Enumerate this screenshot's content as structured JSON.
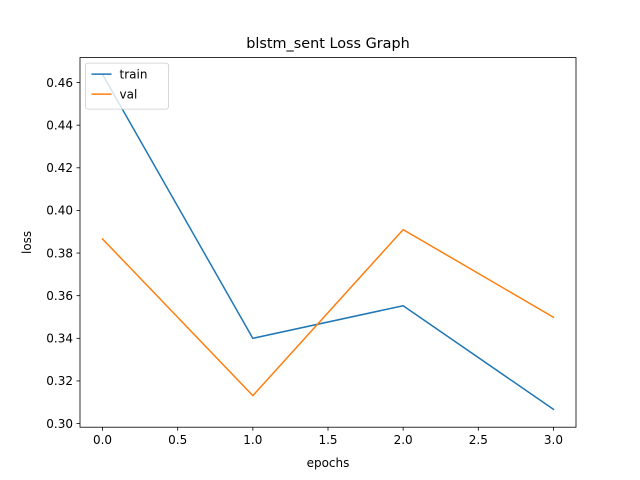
{
  "chart_data": {
    "type": "line",
    "title": "blstm_sent Loss Graph",
    "xlabel": "epochs",
    "ylabel": "loss",
    "x": [
      0,
      1,
      2,
      3
    ],
    "xlim": [
      -0.15,
      3.15
    ],
    "ylim": [
      0.2983,
      0.4717
    ],
    "xticks": [
      0.0,
      0.5,
      1.0,
      1.5,
      2.0,
      2.5,
      3.0
    ],
    "xtick_labels": [
      "0.0",
      "0.5",
      "1.0",
      "1.5",
      "2.0",
      "2.5",
      "3.0"
    ],
    "yticks": [
      0.3,
      0.32,
      0.34,
      0.36,
      0.38,
      0.4,
      0.42,
      0.44,
      0.46
    ],
    "ytick_labels": [
      "0.30",
      "0.32",
      "0.34",
      "0.36",
      "0.38",
      "0.40",
      "0.42",
      "0.44",
      "0.46"
    ],
    "grid": false,
    "legend_position": "upper left",
    "series": [
      {
        "name": "train",
        "color": "#1f77b4",
        "values": [
          0.4638,
          0.34,
          0.3553,
          0.3067
        ]
      },
      {
        "name": "val",
        "color": "#ff7f0e",
        "values": [
          0.3866,
          0.3131,
          0.391,
          0.3499
        ]
      }
    ]
  }
}
